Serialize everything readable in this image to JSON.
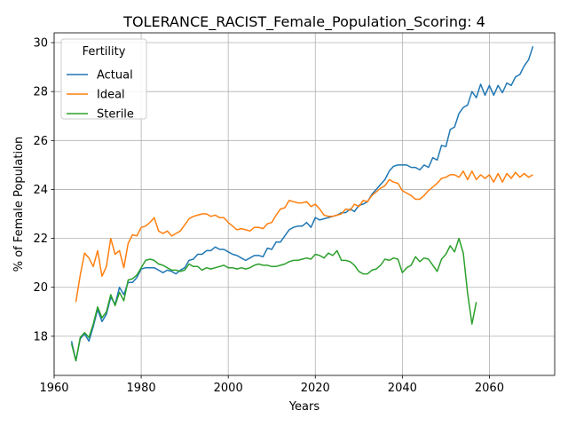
{
  "chart_data": {
    "type": "line",
    "title": "TOLERANCE_RACIST_Female_Population_Scoring: 4",
    "xlabel": "Years",
    "ylabel": "% of Female Population",
    "xlim": [
      1960,
      2075
    ],
    "ylim": [
      16.4,
      30.4
    ],
    "xticks": [
      1960,
      1980,
      2000,
      2020,
      2040,
      2060
    ],
    "yticks": [
      18,
      20,
      22,
      24,
      26,
      28,
      30
    ],
    "grid": true,
    "legend": {
      "title": "Fertility",
      "position": "top-left"
    },
    "series": [
      {
        "name": "Actual",
        "color": "#1f77b4",
        "points": [
          [
            1964,
            17.8
          ],
          [
            1965,
            17.0
          ],
          [
            1966,
            17.9
          ],
          [
            1967,
            18.1
          ],
          [
            1968,
            17.8
          ],
          [
            1969,
            18.4
          ],
          [
            1970,
            19.1
          ],
          [
            1971,
            18.6
          ],
          [
            1972,
            18.9
          ],
          [
            1973,
            19.6
          ],
          [
            1974,
            19.3
          ],
          [
            1975,
            20.0
          ],
          [
            1976,
            19.7
          ],
          [
            1977,
            20.2
          ],
          [
            1978,
            20.2
          ],
          [
            1979,
            20.4
          ],
          [
            1980,
            20.75
          ],
          [
            1981,
            20.8
          ],
          [
            1982,
            20.8
          ],
          [
            1983,
            20.8
          ],
          [
            1984,
            20.7
          ],
          [
            1985,
            20.6
          ],
          [
            1986,
            20.7
          ],
          [
            1987,
            20.65
          ],
          [
            1988,
            20.55
          ],
          [
            1989,
            20.7
          ],
          [
            1990,
            20.8
          ],
          [
            1991,
            21.1
          ],
          [
            1992,
            21.15
          ],
          [
            1993,
            21.35
          ],
          [
            1994,
            21.35
          ],
          [
            1995,
            21.5
          ],
          [
            1996,
            21.5
          ],
          [
            1997,
            21.65
          ],
          [
            1998,
            21.55
          ],
          [
            1999,
            21.55
          ],
          [
            2000,
            21.45
          ],
          [
            2001,
            21.35
          ],
          [
            2002,
            21.3
          ],
          [
            2003,
            21.2
          ],
          [
            2004,
            21.1
          ],
          [
            2005,
            21.2
          ],
          [
            2006,
            21.3
          ],
          [
            2007,
            21.3
          ],
          [
            2008,
            21.25
          ],
          [
            2009,
            21.6
          ],
          [
            2010,
            21.55
          ],
          [
            2011,
            21.85
          ],
          [
            2012,
            21.85
          ],
          [
            2013,
            22.1
          ],
          [
            2014,
            22.35
          ],
          [
            2015,
            22.45
          ],
          [
            2016,
            22.5
          ],
          [
            2017,
            22.5
          ],
          [
            2018,
            22.65
          ],
          [
            2019,
            22.45
          ],
          [
            2020,
            22.85
          ],
          [
            2021,
            22.75
          ],
          [
            2022,
            22.8
          ],
          [
            2023,
            22.85
          ],
          [
            2024,
            22.9
          ],
          [
            2025,
            22.95
          ],
          [
            2026,
            23.05
          ],
          [
            2027,
            23.05
          ],
          [
            2028,
            23.2
          ],
          [
            2029,
            23.1
          ],
          [
            2030,
            23.35
          ],
          [
            2031,
            23.4
          ],
          [
            2032,
            23.5
          ],
          [
            2033,
            23.8
          ],
          [
            2034,
            24.0
          ],
          [
            2035,
            24.2
          ],
          [
            2036,
            24.4
          ],
          [
            2037,
            24.75
          ],
          [
            2038,
            24.95
          ],
          [
            2039,
            25.0
          ],
          [
            2040,
            25.0
          ],
          [
            2041,
            25.0
          ],
          [
            2042,
            24.9
          ],
          [
            2043,
            24.9
          ],
          [
            2044,
            24.8
          ],
          [
            2045,
            25.0
          ],
          [
            2046,
            24.9
          ],
          [
            2047,
            25.3
          ],
          [
            2048,
            25.2
          ],
          [
            2049,
            25.8
          ],
          [
            2050,
            25.75
          ],
          [
            2051,
            26.45
          ],
          [
            2052,
            26.55
          ],
          [
            2053,
            27.1
          ],
          [
            2054,
            27.35
          ],
          [
            2055,
            27.45
          ],
          [
            2056,
            28.0
          ],
          [
            2057,
            27.75
          ],
          [
            2058,
            28.3
          ],
          [
            2059,
            27.85
          ],
          [
            2060,
            28.25
          ],
          [
            2061,
            27.85
          ],
          [
            2062,
            28.25
          ],
          [
            2063,
            27.95
          ],
          [
            2064,
            28.35
          ],
          [
            2065,
            28.25
          ],
          [
            2066,
            28.6
          ],
          [
            2067,
            28.7
          ],
          [
            2068,
            29.05
          ],
          [
            2069,
            29.3
          ],
          [
            2070,
            29.85
          ]
        ]
      },
      {
        "name": "Ideal",
        "color": "#ff7f0e",
        "points": [
          [
            1965,
            19.4
          ],
          [
            1966,
            20.5
          ],
          [
            1967,
            21.4
          ],
          [
            1968,
            21.2
          ],
          [
            1969,
            20.85
          ],
          [
            1970,
            21.5
          ],
          [
            1971,
            20.45
          ],
          [
            1972,
            20.85
          ],
          [
            1973,
            22.0
          ],
          [
            1974,
            21.35
          ],
          [
            1975,
            21.5
          ],
          [
            1976,
            20.8
          ],
          [
            1977,
            21.8
          ],
          [
            1978,
            22.15
          ],
          [
            1979,
            22.1
          ],
          [
            1980,
            22.45
          ],
          [
            1981,
            22.5
          ],
          [
            1982,
            22.65
          ],
          [
            1983,
            22.85
          ],
          [
            1984,
            22.3
          ],
          [
            1985,
            22.2
          ],
          [
            1986,
            22.3
          ],
          [
            1987,
            22.1
          ],
          [
            1988,
            22.2
          ],
          [
            1989,
            22.3
          ],
          [
            1990,
            22.55
          ],
          [
            1991,
            22.8
          ],
          [
            1992,
            22.9
          ],
          [
            1993,
            22.95
          ],
          [
            1994,
            23.0
          ],
          [
            1995,
            23.0
          ],
          [
            1996,
            22.9
          ],
          [
            1997,
            22.95
          ],
          [
            1998,
            22.85
          ],
          [
            1999,
            22.85
          ],
          [
            2000,
            22.65
          ],
          [
            2001,
            22.5
          ],
          [
            2002,
            22.35
          ],
          [
            2003,
            22.4
          ],
          [
            2004,
            22.35
          ],
          [
            2005,
            22.3
          ],
          [
            2006,
            22.45
          ],
          [
            2007,
            22.45
          ],
          [
            2008,
            22.4
          ],
          [
            2009,
            22.6
          ],
          [
            2010,
            22.65
          ],
          [
            2011,
            22.95
          ],
          [
            2012,
            23.2
          ],
          [
            2013,
            23.25
          ],
          [
            2014,
            23.55
          ],
          [
            2015,
            23.5
          ],
          [
            2016,
            23.45
          ],
          [
            2017,
            23.45
          ],
          [
            2018,
            23.5
          ],
          [
            2019,
            23.3
          ],
          [
            2020,
            23.4
          ],
          [
            2021,
            23.2
          ],
          [
            2022,
            22.95
          ],
          [
            2023,
            22.9
          ],
          [
            2024,
            22.9
          ],
          [
            2025,
            22.95
          ],
          [
            2026,
            23.0
          ],
          [
            2027,
            23.2
          ],
          [
            2028,
            23.15
          ],
          [
            2029,
            23.4
          ],
          [
            2030,
            23.3
          ],
          [
            2031,
            23.55
          ],
          [
            2032,
            23.5
          ],
          [
            2033,
            23.75
          ],
          [
            2034,
            23.9
          ],
          [
            2035,
            24.05
          ],
          [
            2036,
            24.15
          ],
          [
            2037,
            24.4
          ],
          [
            2038,
            24.3
          ],
          [
            2039,
            24.25
          ],
          [
            2040,
            23.95
          ],
          [
            2041,
            23.85
          ],
          [
            2042,
            23.75
          ],
          [
            2043,
            23.6
          ],
          [
            2044,
            23.6
          ],
          [
            2045,
            23.75
          ],
          [
            2046,
            23.95
          ],
          [
            2047,
            24.1
          ],
          [
            2048,
            24.25
          ],
          [
            2049,
            24.45
          ],
          [
            2050,
            24.5
          ],
          [
            2051,
            24.6
          ],
          [
            2052,
            24.6
          ],
          [
            2053,
            24.5
          ],
          [
            2054,
            24.75
          ],
          [
            2055,
            24.4
          ],
          [
            2056,
            24.75
          ],
          [
            2057,
            24.4
          ],
          [
            2058,
            24.6
          ],
          [
            2059,
            24.45
          ],
          [
            2060,
            24.6
          ],
          [
            2061,
            24.3
          ],
          [
            2062,
            24.65
          ],
          [
            2063,
            24.3
          ],
          [
            2064,
            24.65
          ],
          [
            2065,
            24.45
          ],
          [
            2066,
            24.7
          ],
          [
            2067,
            24.5
          ],
          [
            2068,
            24.65
          ],
          [
            2069,
            24.5
          ],
          [
            2070,
            24.6
          ]
        ]
      },
      {
        "name": "Sterile",
        "color": "#2ca02c",
        "points": [
          [
            1964,
            17.7
          ],
          [
            1965,
            17.0
          ],
          [
            1966,
            17.95
          ],
          [
            1967,
            18.15
          ],
          [
            1968,
            17.95
          ],
          [
            1969,
            18.5
          ],
          [
            1970,
            19.2
          ],
          [
            1971,
            18.75
          ],
          [
            1972,
            19.0
          ],
          [
            1973,
            19.7
          ],
          [
            1974,
            19.25
          ],
          [
            1975,
            19.8
          ],
          [
            1976,
            19.45
          ],
          [
            1977,
            20.3
          ],
          [
            1978,
            20.35
          ],
          [
            1979,
            20.5
          ],
          [
            1980,
            20.8
          ],
          [
            1981,
            21.1
          ],
          [
            1982,
            21.15
          ],
          [
            1983,
            21.1
          ],
          [
            1984,
            20.95
          ],
          [
            1985,
            20.9
          ],
          [
            1986,
            20.8
          ],
          [
            1987,
            20.7
          ],
          [
            1988,
            20.7
          ],
          [
            1989,
            20.65
          ],
          [
            1990,
            20.7
          ],
          [
            1991,
            20.95
          ],
          [
            1992,
            20.85
          ],
          [
            1993,
            20.85
          ],
          [
            1994,
            20.7
          ],
          [
            1995,
            20.8
          ],
          [
            1996,
            20.75
          ],
          [
            1997,
            20.8
          ],
          [
            1998,
            20.85
          ],
          [
            1999,
            20.9
          ],
          [
            2000,
            20.8
          ],
          [
            2001,
            20.8
          ],
          [
            2002,
            20.75
          ],
          [
            2003,
            20.8
          ],
          [
            2004,
            20.75
          ],
          [
            2005,
            20.8
          ],
          [
            2006,
            20.9
          ],
          [
            2007,
            20.95
          ],
          [
            2008,
            20.9
          ],
          [
            2009,
            20.9
          ],
          [
            2010,
            20.85
          ],
          [
            2011,
            20.85
          ],
          [
            2012,
            20.9
          ],
          [
            2013,
            20.95
          ],
          [
            2014,
            21.05
          ],
          [
            2015,
            21.1
          ],
          [
            2016,
            21.1
          ],
          [
            2017,
            21.15
          ],
          [
            2018,
            21.2
          ],
          [
            2019,
            21.15
          ],
          [
            2020,
            21.35
          ],
          [
            2021,
            21.3
          ],
          [
            2022,
            21.2
          ],
          [
            2023,
            21.4
          ],
          [
            2024,
            21.3
          ],
          [
            2025,
            21.5
          ],
          [
            2026,
            21.1
          ],
          [
            2027,
            21.1
          ],
          [
            2028,
            21.05
          ],
          [
            2029,
            20.9
          ],
          [
            2030,
            20.65
          ],
          [
            2031,
            20.55
          ],
          [
            2032,
            20.55
          ],
          [
            2033,
            20.7
          ],
          [
            2034,
            20.75
          ],
          [
            2035,
            20.9
          ],
          [
            2036,
            21.15
          ],
          [
            2037,
            21.1
          ],
          [
            2038,
            21.2
          ],
          [
            2039,
            21.15
          ],
          [
            2040,
            20.6
          ],
          [
            2041,
            20.8
          ],
          [
            2042,
            20.9
          ],
          [
            2043,
            21.25
          ],
          [
            2044,
            21.05
          ],
          [
            2045,
            21.2
          ],
          [
            2046,
            21.15
          ],
          [
            2047,
            20.9
          ],
          [
            2048,
            20.65
          ],
          [
            2049,
            21.15
          ],
          [
            2050,
            21.35
          ],
          [
            2051,
            21.7
          ],
          [
            2052,
            21.45
          ],
          [
            2053,
            22.0
          ],
          [
            2054,
            21.4
          ],
          [
            2055,
            19.75
          ],
          [
            2056,
            18.5
          ],
          [
            2057,
            19.4
          ]
        ]
      }
    ]
  }
}
